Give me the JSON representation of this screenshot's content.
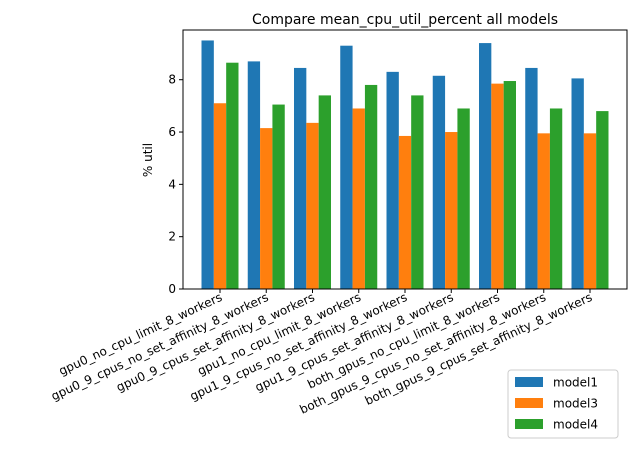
{
  "chart_data": {
    "type": "bar",
    "title": "Compare mean_cpu_util_percent all models",
    "xlabel": "",
    "ylabel": "% util",
    "ylim": [
      0,
      9.9
    ],
    "yticks": [
      0,
      2,
      4,
      6,
      8
    ],
    "categories": [
      "gpu0_no_cpu_limit_8_workers",
      "gpu0_9_cpus_no_set_affinity_8_workers",
      "gpu0_9_cpus_set_affinity_8_workers",
      "gpu1_no_cpu_limit_8_workers",
      "gpu1_9_cpus_no_set_affinity_8_workers",
      "gpu1_9_cpus_set_affinity_8_workers",
      "both_gpus_no_cpu_limit_8_workers",
      "both_gpus_9_cpus_no_set_affinity_8_workers",
      "both_gpus_9_cpus_set_affinity_8_workers"
    ],
    "series": [
      {
        "name": "model1",
        "color": "#1f77b4",
        "values": [
          9.5,
          8.7,
          8.45,
          9.3,
          8.3,
          8.15,
          9.4,
          8.45,
          8.05
        ]
      },
      {
        "name": "model3",
        "color": "#ff7f0e",
        "values": [
          7.1,
          6.15,
          6.35,
          6.9,
          5.85,
          6.0,
          7.85,
          5.95,
          5.95
        ]
      },
      {
        "name": "model4",
        "color": "#2ca02c",
        "values": [
          8.65,
          7.05,
          7.4,
          7.8,
          7.4,
          6.9,
          7.95,
          6.9,
          6.8
        ]
      }
    ],
    "legend": "bottom-right"
  }
}
